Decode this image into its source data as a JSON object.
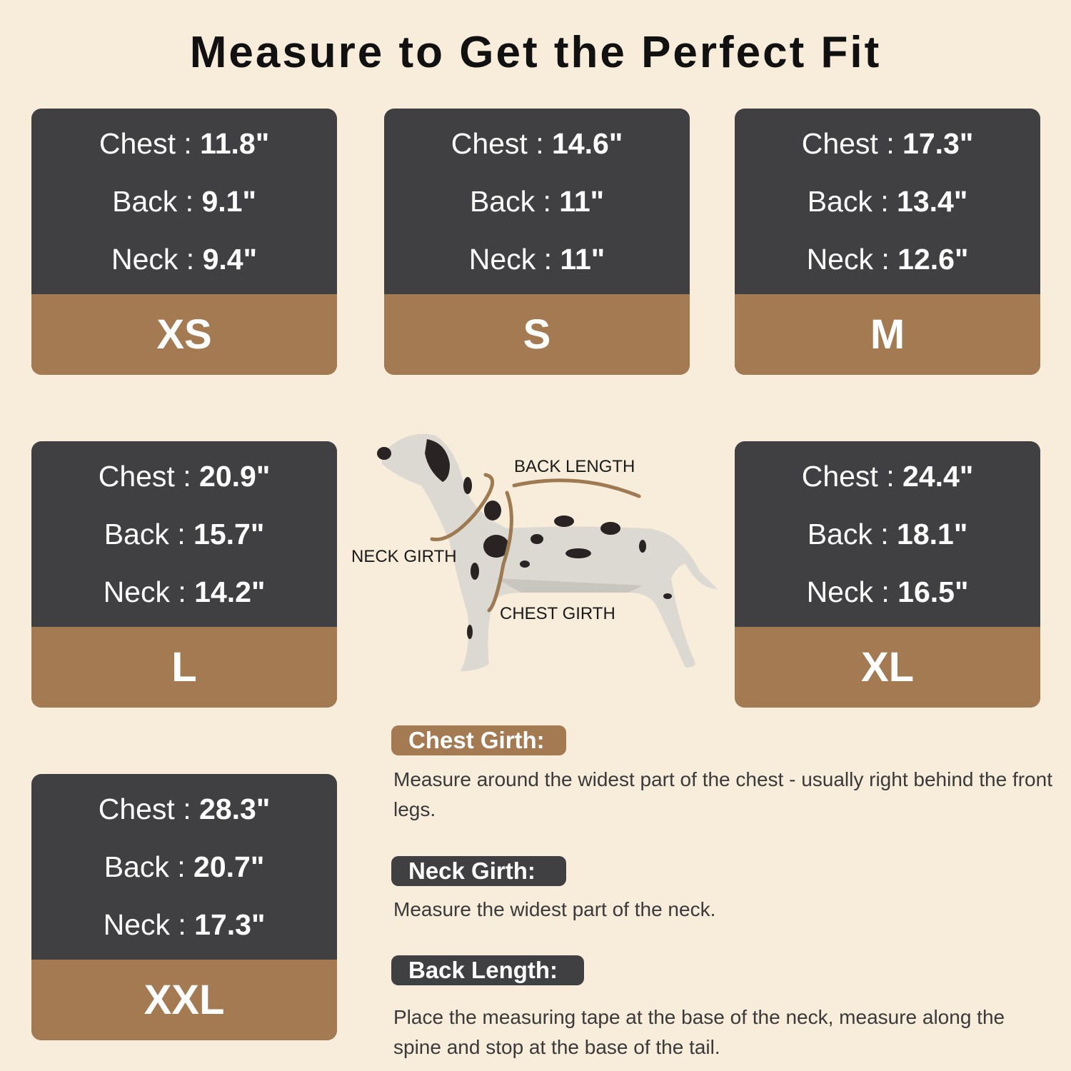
{
  "title": "Measure to Get the Perfect Fit",
  "colors": {
    "background": "#f8ecda",
    "card_dark": "#404043",
    "accent_brown": "#a37a52"
  },
  "sizes": [
    {
      "label": "XS",
      "chest_label": "Chest :",
      "chest": "11.8\"",
      "back_label": "Back :",
      "back": "9.1\"",
      "neck_label": "Neck :",
      "neck": "9.4\""
    },
    {
      "label": "S",
      "chest_label": "Chest :",
      "chest": "14.6\"",
      "back_label": "Back :",
      "back": "11\"",
      "neck_label": "Neck :",
      "neck": "11\""
    },
    {
      "label": "M",
      "chest_label": "Chest :",
      "chest": "17.3\"",
      "back_label": "Back :",
      "back": "13.4\"",
      "neck_label": "Neck :",
      "neck": "12.6\""
    },
    {
      "label": "L",
      "chest_label": "Chest :",
      "chest": "20.9\"",
      "back_label": "Back :",
      "back": "15.7\"",
      "neck_label": "Neck :",
      "neck": "14.2\""
    },
    {
      "label": "XL",
      "chest_label": "Chest :",
      "chest": "24.4\"",
      "back_label": "Back :",
      "back": "18.1\"",
      "neck_label": "Neck :",
      "neck": "16.5\""
    },
    {
      "label": "XXL",
      "chest_label": "Chest :",
      "chest": "28.3\"",
      "back_label": "Back :",
      "back": "20.7\"",
      "neck_label": "Neck :",
      "neck": "17.3\""
    }
  ],
  "diagram": {
    "back_length": "BACK LENGTH",
    "neck_girth": "NECK GIRTH",
    "chest_girth": "CHEST GIRTH"
  },
  "instructions": [
    {
      "heading": "Chest Girth:",
      "text": "Measure around the widest part of the chest - usually right behind the front legs."
    },
    {
      "heading": "Neck Girth:",
      "text": "Measure the widest part of the neck."
    },
    {
      "heading": "Back Length:",
      "text": "Place the measuring tape at the base of the neck, measure along the spine and stop at the base of the tail."
    }
  ]
}
